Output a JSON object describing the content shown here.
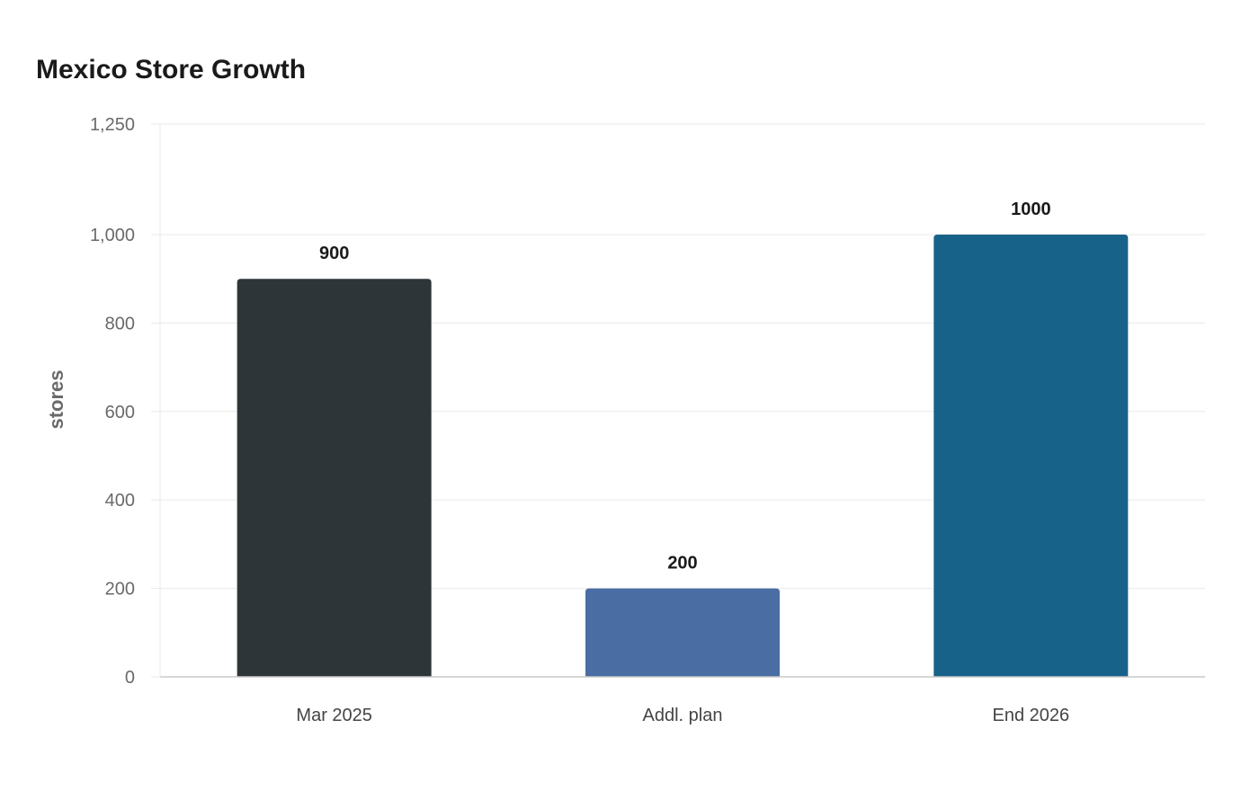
{
  "chart_data": {
    "type": "bar",
    "title": "Mexico Store Growth",
    "xlabel": "",
    "ylabel": "stores",
    "categories": [
      "Mar 2025",
      "Addl. plan",
      "End 2026"
    ],
    "values": [
      900,
      200,
      1000
    ],
    "data_labels": [
      "900",
      "200",
      "1000"
    ],
    "colors": [
      "#2e3538",
      "#4a6ea3",
      "#176288"
    ],
    "ylim": [
      0,
      1250
    ],
    "yticks": [
      0,
      200,
      400,
      600,
      800,
      1000,
      1250
    ],
    "ytick_labels": [
      "0",
      "200",
      "400",
      "600",
      "800",
      "1,000",
      "1,250"
    ],
    "grid": true,
    "legend": "none"
  }
}
